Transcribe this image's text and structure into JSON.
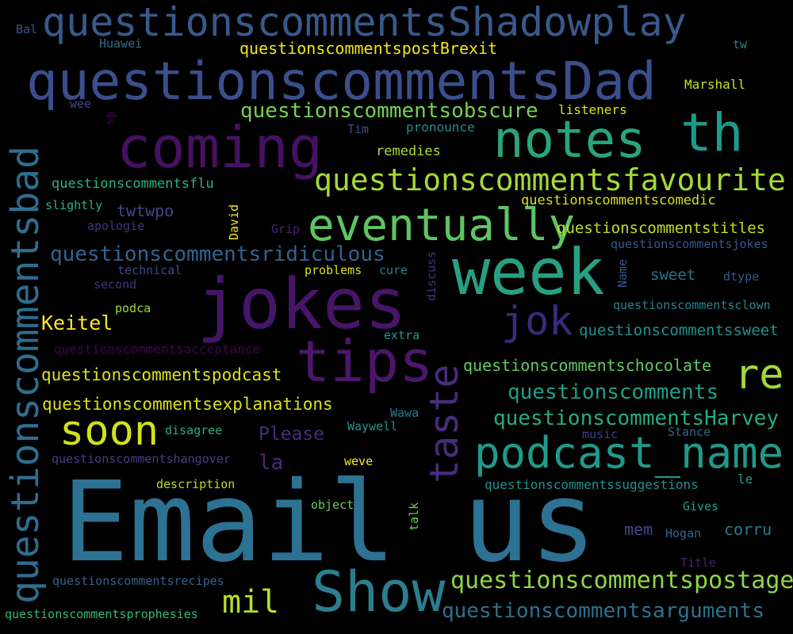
{
  "words": [
    {
      "text": "Email us",
      "color": "#2d7193"
    },
    {
      "text": "questionscommentsDad",
      "color": "#3b4e8b"
    },
    {
      "text": "week",
      "color": "#27a082"
    },
    {
      "text": "questionscommentsShadowplay",
      "color": "#39598b"
    },
    {
      "text": "jokes",
      "color": "#471568"
    },
    {
      "text": "questionscommentsbad",
      "color": "#2f6d8e"
    },
    {
      "text": "notes",
      "color": "#29a47d"
    },
    {
      "text": "coming",
      "color": "#461160"
    },
    {
      "text": "th",
      "color": "#1e9a8a"
    },
    {
      "text": "Show",
      "color": "#2c7e8f"
    },
    {
      "text": "tips",
      "color": "#4c166a"
    },
    {
      "text": "eventually",
      "color": "#5ec462"
    },
    {
      "text": "podcast_name",
      "color": "#1f9a8a"
    },
    {
      "text": "taste",
      "color": "#472c7a"
    },
    {
      "text": "questionscommentsfavourite",
      "color": "#a3da37"
    },
    {
      "text": "soon",
      "color": "#d2e21b"
    },
    {
      "text": "jok",
      "color": "#3b2a7c"
    },
    {
      "text": "re",
      "color": "#9fda3a"
    },
    {
      "text": "mil",
      "color": "#b5de2b"
    },
    {
      "text": "questionscommentsridiculous",
      "color": "#33638d"
    },
    {
      "text": "questionscommentspostage",
      "color": "#8ed645"
    },
    {
      "text": "questionscommentsarguments",
      "color": "#2c718e"
    },
    {
      "text": "questionscommentsobscure",
      "color": "#77d053"
    },
    {
      "text": "questionscommentsHarvey",
      "color": "#25ac82"
    },
    {
      "text": "questionscomments",
      "color": "#1f9f88"
    },
    {
      "text": "Keitel",
      "color": "#fde725"
    },
    {
      "text": "questionscommentsexplanations",
      "color": "#d8e219"
    },
    {
      "text": "questionscommentspodcast",
      "color": "#dde318"
    },
    {
      "text": "questionscommentschocolate",
      "color": "#60ca60"
    },
    {
      "text": "questionscommentspostBrexit",
      "color": "#f2e51d"
    },
    {
      "text": "questionscommentstitles",
      "color": "#c2df23"
    },
    {
      "text": "questionscommentssweet",
      "color": "#21918c"
    },
    {
      "text": "twtwpo",
      "color": "#3f4788"
    },
    {
      "text": "Please",
      "color": "#472d7b"
    },
    {
      "text": "questionscommentscomedic",
      "color": "#d5e21a"
    },
    {
      "text": "questionscommentsflu",
      "color": "#2db27d"
    },
    {
      "text": "questionscommentsacceptance",
      "color": "#440154"
    },
    {
      "text": "questionscommentssuggestions",
      "color": "#1f948c"
    },
    {
      "text": "questionscommentsclown",
      "color": "#26828e"
    },
    {
      "text": "questionscommentsjokes",
      "color": "#39568c"
    },
    {
      "text": "questionscommentshangover",
      "color": "#433e85"
    },
    {
      "text": "questionscommentsrecipes",
      "color": "#33638d"
    },
    {
      "text": "questionscommentsprophesies",
      "color": "#37b878"
    },
    {
      "text": "la",
      "color": "#482878"
    },
    {
      "text": "mem",
      "color": "#3e4989"
    },
    {
      "text": "corru",
      "color": "#2a788e"
    },
    {
      "text": "sweet",
      "color": "#2c728e"
    },
    {
      "text": "remedies",
      "color": "#addc30"
    },
    {
      "text": "pronounce",
      "color": "#238a8d"
    },
    {
      "text": "listeners",
      "color": "#dde318"
    },
    {
      "text": "Marshall",
      "color": "#c8e020"
    },
    {
      "text": "slightly",
      "color": "#2db27d"
    },
    {
      "text": "apologie",
      "color": "#46327e"
    },
    {
      "text": "Grip",
      "color": "#482475"
    },
    {
      "text": "technical",
      "color": "#3e4989"
    },
    {
      "text": "problems",
      "color": "#d8e219"
    },
    {
      "text": "cure",
      "color": "#26828e"
    },
    {
      "text": "second",
      "color": "#46327e"
    },
    {
      "text": "podca",
      "color": "#9bd93c"
    },
    {
      "text": "extra",
      "color": "#1f988b"
    },
    {
      "text": "disagree",
      "color": "#29af7f"
    },
    {
      "text": "Waywell",
      "color": "#1f958b"
    },
    {
      "text": "Wawa",
      "color": "#2a788e"
    },
    {
      "text": "music",
      "color": "#433e85"
    },
    {
      "text": "Stance",
      "color": "#31688e"
    },
    {
      "text": "weve",
      "color": "#fde725"
    },
    {
      "text": "description",
      "color": "#b5de2b"
    },
    {
      "text": "object",
      "color": "#6ccd5a"
    },
    {
      "text": "Gives",
      "color": "#1f9f88"
    },
    {
      "text": "Hogan",
      "color": "#33638d"
    },
    {
      "text": "Title",
      "color": "#482071"
    },
    {
      "text": "le",
      "color": "#1f9a8a"
    },
    {
      "text": "Huawei",
      "color": "#2e6f8e"
    },
    {
      "text": "tw",
      "color": "#26828e"
    },
    {
      "text": "wee",
      "color": "#3e4a89"
    },
    {
      "text": "Bal",
      "color": "#3b528b"
    },
    {
      "text": "Tim",
      "color": "#3b528b"
    },
    {
      "text": "dtype",
      "color": "#3b528b"
    },
    {
      "text": "sp",
      "color": "#440154"
    },
    {
      "text": "David",
      "color": "#f1e51d"
    },
    {
      "text": "discuss",
      "color": "#46327e"
    },
    {
      "text": "Name",
      "color": "#39568c"
    },
    {
      "text": "talk",
      "color": "#6ece58"
    }
  ]
}
